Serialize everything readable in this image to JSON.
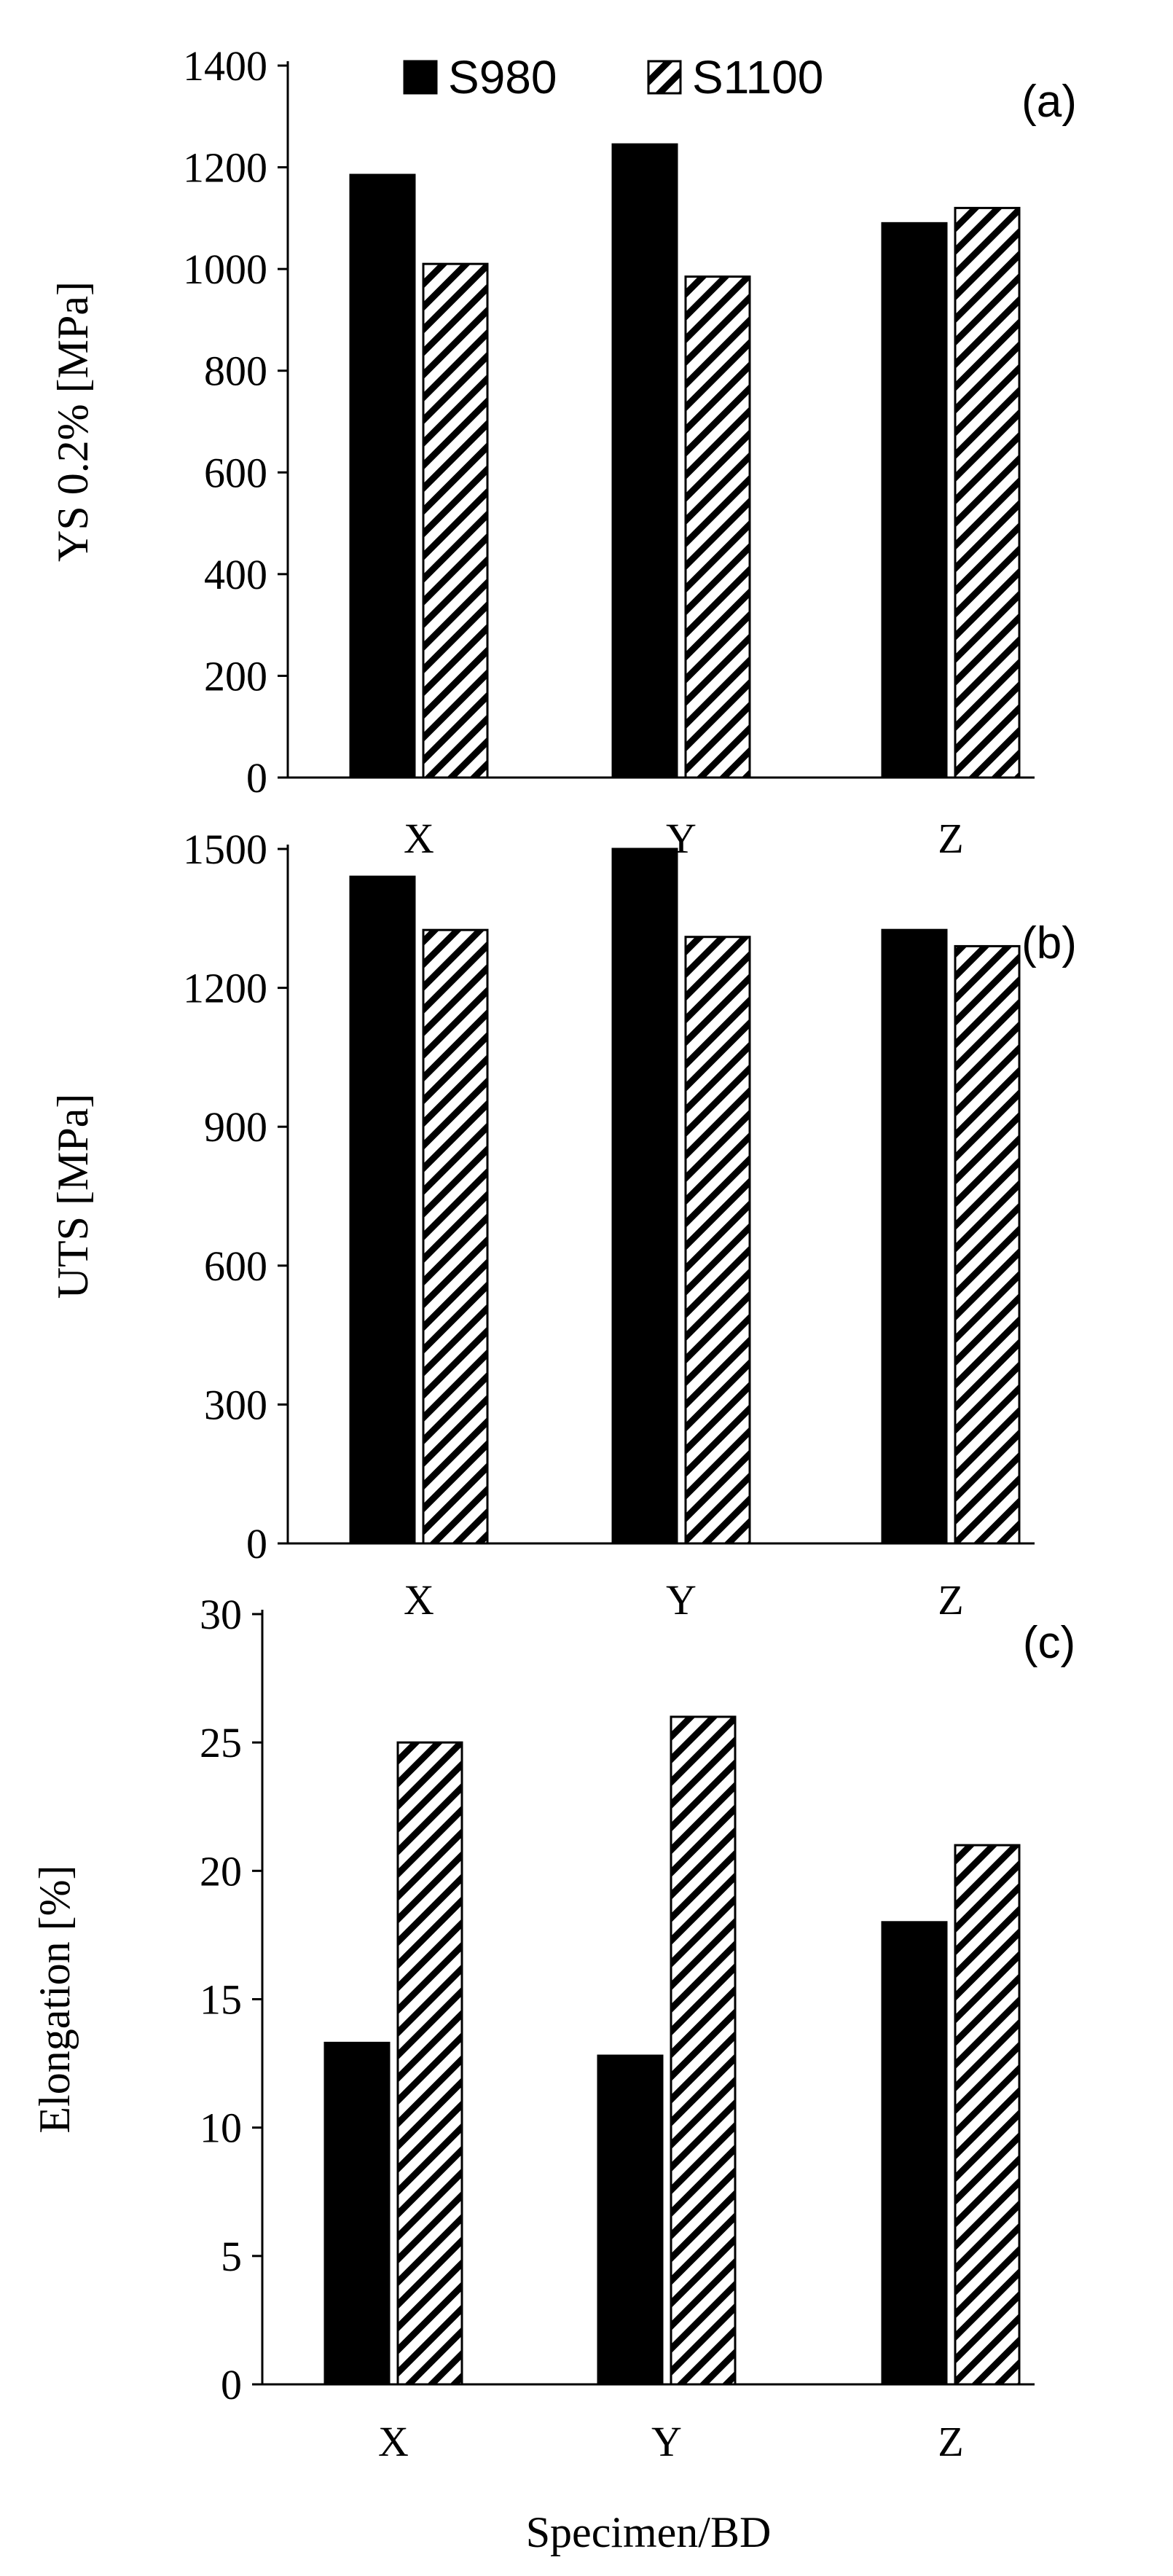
{
  "chart_data": [
    {
      "type": "bar",
      "panel_label": "(a)",
      "categories": [
        "X",
        "Y",
        "Z"
      ],
      "series": [
        {
          "name": "S980",
          "values": [
            1185,
            1245,
            1090
          ],
          "fill": "solid",
          "color": "#000000"
        },
        {
          "name": "S1100",
          "values": [
            1010,
            985,
            1120
          ],
          "fill": "hatch",
          "color": "#000000"
        }
      ],
      "ylabel": "YS 0.2% [MPa]",
      "xlabel": "",
      "ylim": [
        0,
        1400
      ],
      "yticks": [
        0,
        200,
        400,
        600,
        800,
        1000,
        1200,
        1400
      ],
      "legend": "top-center",
      "grid": false
    },
    {
      "type": "bar",
      "panel_label": "(b)",
      "categories": [
        "X",
        "Y",
        "Z"
      ],
      "series": [
        {
          "name": "S980",
          "values": [
            1440,
            1500,
            1325
          ],
          "fill": "solid",
          "color": "#000000"
        },
        {
          "name": "S1100",
          "values": [
            1325,
            1310,
            1290
          ],
          "fill": "hatch",
          "color": "#000000"
        }
      ],
      "ylabel": "UTS [MPa]",
      "xlabel": "",
      "ylim": [
        0,
        1500
      ],
      "yticks": [
        0,
        300,
        600,
        900,
        1200,
        1500
      ],
      "grid": false
    },
    {
      "type": "bar",
      "panel_label": "(c)",
      "categories": [
        "X",
        "Y",
        "Z"
      ],
      "series": [
        {
          "name": "S980",
          "values": [
            13.3,
            12.8,
            18.0
          ],
          "fill": "solid",
          "color": "#000000"
        },
        {
          "name": "S1100",
          "values": [
            25.0,
            26.0,
            21.0
          ],
          "fill": "hatch",
          "color": "#000000"
        }
      ],
      "ylabel": "Elongation [%]",
      "xlabel": "Specimen/BD",
      "ylim": [
        0,
        30
      ],
      "yticks": [
        0,
        5,
        10,
        15,
        20,
        25,
        30
      ],
      "grid": false
    }
  ],
  "legend": {
    "items": [
      {
        "label": "S980",
        "fill": "solid"
      },
      {
        "label": "S1100",
        "fill": "hatch"
      }
    ]
  }
}
